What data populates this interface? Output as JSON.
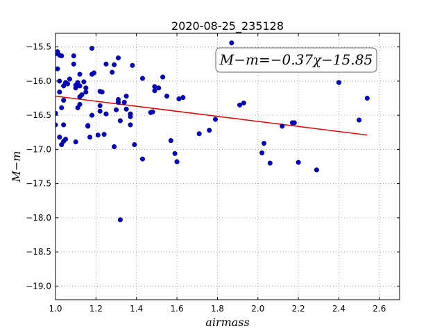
{
  "chart_data": {
    "type": "scatter",
    "title": "2020-08-25_235128",
    "xlabel": "airmass",
    "ylabel": "M−m",
    "xlim": [
      1.0,
      2.7
    ],
    "ylim": [
      -19.2,
      -15.3
    ],
    "y_inverted": true,
    "grid": true,
    "x_ticks": [
      1.0,
      1.2,
      1.4,
      1.6,
      1.8,
      2.0,
      2.2,
      2.4,
      2.6
    ],
    "x_tick_labels": [
      "1.0",
      "1.2",
      "1.4",
      "1.6",
      "1.8",
      "2.0",
      "2.2",
      "2.4",
      "2.6"
    ],
    "y_ticks": [
      -15.5,
      -16.0,
      -16.5,
      -17.0,
      -17.5,
      -18.0,
      -18.5,
      -19.0
    ],
    "y_tick_labels": [
      "−15.5",
      "−16.0",
      "−16.5",
      "−17.0",
      "−17.5",
      "−18.0",
      "−18.5",
      "−19.0"
    ],
    "annotation": "M−m=−0.37χ−15.85",
    "colors": {
      "points": "#0000cc",
      "fit": "#dd0000",
      "grid": "#888888"
    },
    "fit_line": {
      "slope": -0.37,
      "intercept": -15.85,
      "x_range": [
        1.0,
        2.54
      ]
    },
    "series": [
      {
        "points": [
          [
            1.0,
            -15.6
          ],
          [
            1.01,
            -15.57
          ],
          [
            1.02,
            -15.62
          ],
          [
            1.03,
            -15.63
          ],
          [
            1.01,
            -15.82
          ],
          [
            1.0,
            -16.47
          ],
          [
            1.0,
            -16.64
          ],
          [
            1.02,
            -16.16
          ],
          [
            1.02,
            -16.0
          ],
          [
            1.03,
            -16.39
          ],
          [
            1.04,
            -16.07
          ],
          [
            1.04,
            -16.28
          ],
          [
            1.04,
            -16.64
          ],
          [
            1.02,
            -16.82
          ],
          [
            1.04,
            -16.88
          ],
          [
            1.05,
            -16.85
          ],
          [
            1.03,
            -16.93
          ],
          [
            1.05,
            -16.02
          ],
          [
            1.06,
            -16.04
          ],
          [
            1.07,
            -15.97
          ],
          [
            1.09,
            -15.75
          ],
          [
            1.09,
            -15.63
          ],
          [
            1.1,
            -16.1
          ],
          [
            1.1,
            -16.06
          ],
          [
            1.11,
            -16.02
          ],
          [
            1.12,
            -15.9
          ],
          [
            1.12,
            -16.07
          ],
          [
            1.12,
            -16.23
          ],
          [
            1.11,
            -16.39
          ],
          [
            1.12,
            -16.34
          ],
          [
            1.1,
            -16.89
          ],
          [
            1.13,
            -16.2
          ],
          [
            1.14,
            -16.01
          ],
          [
            1.15,
            -16.1
          ],
          [
            1.15,
            -16.16
          ],
          [
            1.16,
            -16.66
          ],
          [
            1.16,
            -16.65
          ],
          [
            1.17,
            -16.82
          ],
          [
            1.18,
            -16.5
          ],
          [
            1.18,
            -15.9
          ],
          [
            1.19,
            -15.88
          ],
          [
            1.18,
            -15.52
          ],
          [
            1.21,
            -16.79
          ],
          [
            1.22,
            -16.44
          ],
          [
            1.22,
            -16.36
          ],
          [
            1.23,
            -16.16
          ],
          [
            1.22,
            -16.15
          ],
          [
            1.24,
            -16.78
          ],
          [
            1.25,
            -16.48
          ],
          [
            1.25,
            -15.75
          ],
          [
            1.28,
            -15.87
          ],
          [
            1.29,
            -15.76
          ],
          [
            1.3,
            -16.42
          ],
          [
            1.29,
            -16.96
          ],
          [
            1.31,
            -16.31
          ],
          [
            1.31,
            -16.27
          ],
          [
            1.31,
            -15.66
          ],
          [
            1.32,
            -16.58
          ],
          [
            1.32,
            -18.03
          ],
          [
            1.34,
            -16.31
          ],
          [
            1.35,
            -16.41
          ],
          [
            1.35,
            -16.22
          ],
          [
            1.37,
            -16.48
          ],
          [
            1.37,
            -16.52
          ],
          [
            1.37,
            -16.64
          ],
          [
            1.38,
            -15.77
          ],
          [
            1.39,
            -16.93
          ],
          [
            1.43,
            -15.96
          ],
          [
            1.43,
            -17.14
          ],
          [
            1.47,
            -16.46
          ],
          [
            1.48,
            -16.45
          ],
          [
            1.49,
            -16.08
          ],
          [
            1.49,
            -16.14
          ],
          [
            1.51,
            -16.1
          ],
          [
            1.53,
            -15.94
          ],
          [
            1.55,
            -16.22
          ],
          [
            1.57,
            -16.87
          ],
          [
            1.59,
            -17.06
          ],
          [
            1.6,
            -17.18
          ],
          [
            1.61,
            -16.26
          ],
          [
            1.63,
            -16.24
          ],
          [
            1.71,
            -16.77
          ],
          [
            1.76,
            -16.72
          ],
          [
            1.79,
            -16.56
          ],
          [
            1.87,
            -15.44
          ],
          [
            1.91,
            -16.35
          ],
          [
            1.93,
            -16.32
          ],
          [
            2.02,
            -17.05
          ],
          [
            2.03,
            -16.91
          ],
          [
            2.06,
            -17.2
          ],
          [
            2.12,
            -16.66
          ],
          [
            2.17,
            -16.61
          ],
          [
            2.18,
            -16.61
          ],
          [
            2.2,
            -17.19
          ],
          [
            2.29,
            -17.3
          ],
          [
            2.4,
            -16.02
          ],
          [
            2.5,
            -16.57
          ],
          [
            2.54,
            -16.25
          ]
        ]
      }
    ]
  }
}
